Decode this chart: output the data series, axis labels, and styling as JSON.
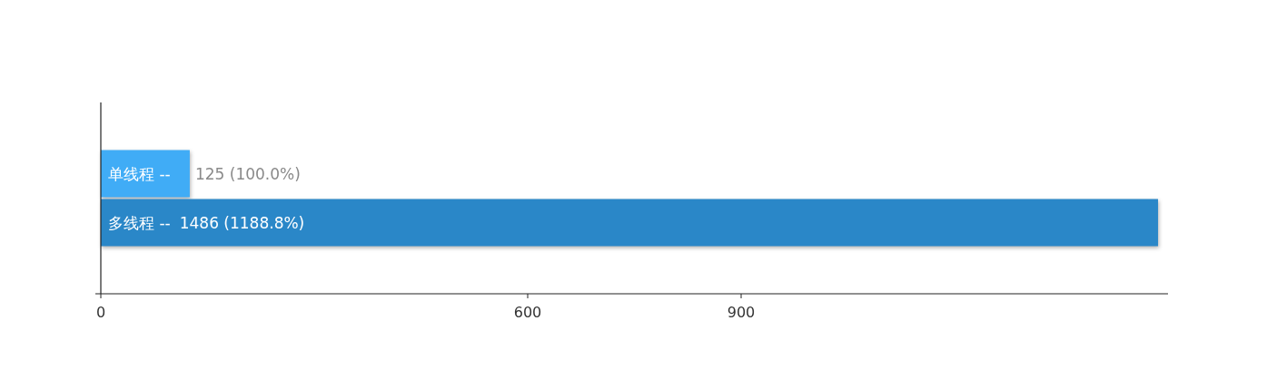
{
  "chart_data": {
    "type": "bar",
    "orientation": "horizontal",
    "categories": [
      "单线程  --",
      "多线程  --"
    ],
    "values": [
      125,
      1486
    ],
    "colors": [
      "#40acf6",
      "#2a87c8"
    ],
    "value_labels": [
      "125 (100.0%)",
      "1486 (1188.8%)"
    ],
    "xlim": [
      0,
      1500
    ],
    "xticks": [
      0,
      600,
      900
    ],
    "tick_labels": "x",
    "grid": false
  }
}
